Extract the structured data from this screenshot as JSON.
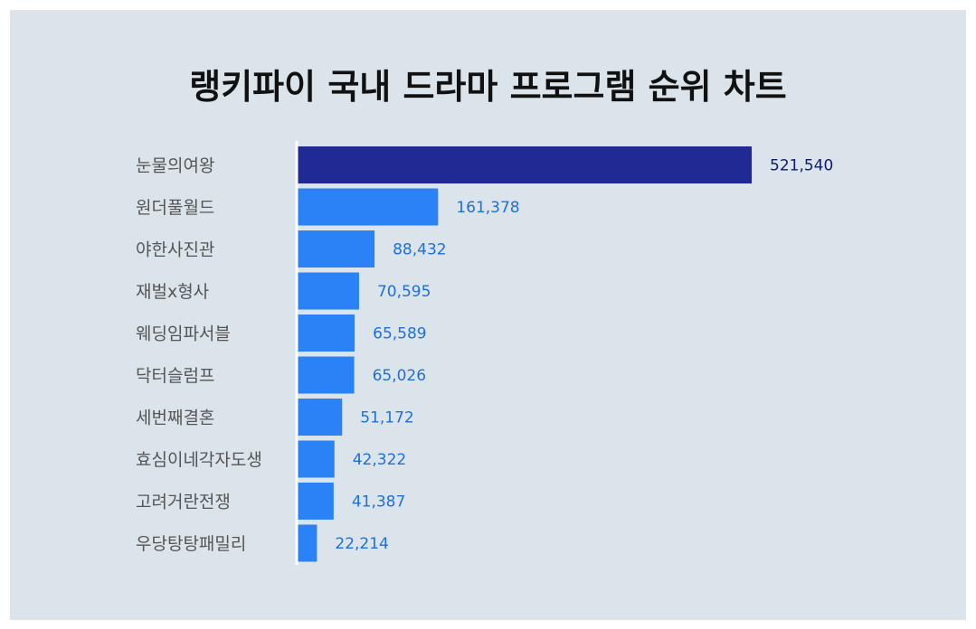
{
  "chart_data": {
    "type": "bar",
    "orientation": "horizontal",
    "title": "랭키파이 국내 드라마 프로그램 순위 차트",
    "categories": [
      "눈물의여왕",
      "원더풀월드",
      "야한사진관",
      "재벌x형사",
      "웨딩임파서블",
      "닥터슬럼프",
      "세번째결혼",
      "효심이네각자도생",
      "고려거란전쟁",
      "우당탕탕패밀리"
    ],
    "values": [
      521540,
      161378,
      88432,
      70595,
      65589,
      65026,
      51172,
      42322,
      41387,
      22214
    ],
    "value_labels": [
      "521,540",
      "161,378",
      "88,432",
      "70,595",
      "65,589",
      "65,026",
      "51,172",
      "42,322",
      "41,387",
      "22,214"
    ],
    "xlim": [
      0,
      521540
    ],
    "grid": false,
    "legend": "none",
    "colors": {
      "highlight_bar": "#1f2a94",
      "bar": "#2b82f7",
      "highlight_label": "#0d1b6e",
      "label": "#1f6fd8",
      "axis": "#ffffff",
      "background": "#dae4ea"
    }
  }
}
